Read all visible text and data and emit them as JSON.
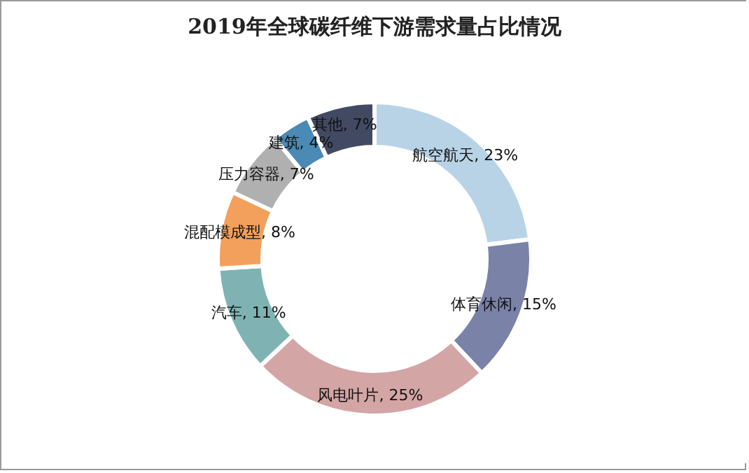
{
  "chart_data": {
    "type": "donut",
    "title": "2019年全球碳纤维下游需求量占比情况",
    "categories": [
      "航空航天",
      "体育休闲",
      "风电叶片",
      "汽车",
      "混配模成型",
      "压力容器",
      "建筑",
      "其他"
    ],
    "values": [
      23,
      15,
      25,
      11,
      8,
      7,
      4,
      7
    ],
    "value_labels": [
      "23%",
      "15%",
      "25%",
      "11%",
      "8%",
      "7%",
      "4%",
      "7%"
    ],
    "colors": [
      "#b8d3e6",
      "#7a82a8",
      "#d4a5a5",
      "#7fb3b3",
      "#f2a05c",
      "#b0b0b0",
      "#4a8ab5",
      "#424a63"
    ]
  }
}
